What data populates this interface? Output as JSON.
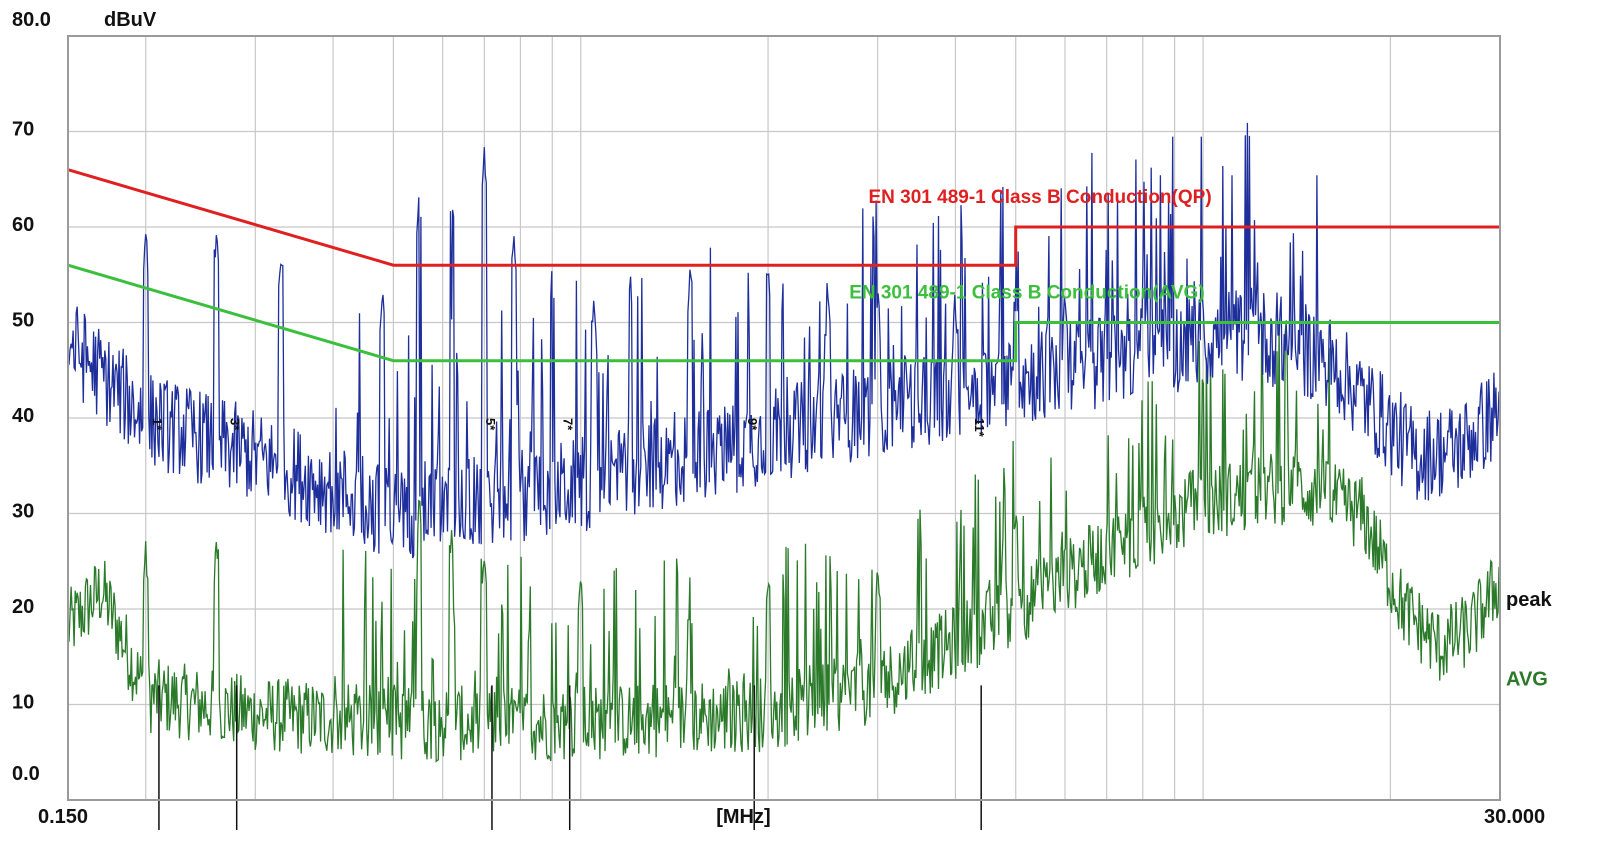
{
  "chart_data": {
    "type": "line",
    "ylabel": "dBuV",
    "xlabel": "[MHz]",
    "x_scale": "log",
    "xlim": [
      0.15,
      30.0
    ],
    "ylim": [
      0,
      80
    ],
    "x_tick_labels": [
      "0.150",
      "30.000"
    ],
    "y_tick_labels": [
      "80.0",
      "70",
      "60",
      "50",
      "40",
      "30",
      "20",
      "10",
      "0.0"
    ],
    "y_ticks": [
      80,
      70,
      60,
      50,
      40,
      30,
      20,
      10,
      0
    ],
    "grid": true,
    "series": [
      {
        "name": "EN 301 489-1 Class B Conduction(QP)",
        "color": "#e02020",
        "points": [
          [
            0.15,
            66
          ],
          [
            0.5,
            56
          ],
          [
            5.0,
            56
          ],
          [
            5.0,
            60
          ],
          [
            30.0,
            60
          ]
        ]
      },
      {
        "name": "EN 301 489-1 Class B Conduction(AVG)",
        "color": "#3cbf3c",
        "points": [
          [
            0.15,
            56
          ],
          [
            0.5,
            46
          ],
          [
            5.0,
            46
          ],
          [
            5.0,
            50
          ],
          [
            30.0,
            50
          ]
        ]
      },
      {
        "name": "peak",
        "color": "#1e2f9c",
        "envelope": [
          [
            0.15,
            48
          ],
          [
            0.2,
            40
          ],
          [
            0.3,
            36
          ],
          [
            0.5,
            30
          ],
          [
            1.0,
            33
          ],
          [
            2.0,
            38
          ],
          [
            3.0,
            41
          ],
          [
            5.0,
            44
          ],
          [
            8.0,
            47
          ],
          [
            12.0,
            49
          ],
          [
            16.0,
            46
          ],
          [
            20.0,
            39
          ],
          [
            22.0,
            36
          ],
          [
            26.0,
            37
          ],
          [
            30.0,
            41
          ]
        ],
        "spikes": [
          [
            0.2,
            61
          ],
          [
            0.26,
            62
          ],
          [
            0.33,
            59
          ],
          [
            0.48,
            55
          ],
          [
            0.55,
            64
          ],
          [
            0.62,
            65
          ],
          [
            0.7,
            69
          ],
          [
            0.78,
            60
          ],
          [
            0.9,
            58
          ],
          [
            1.05,
            55
          ],
          [
            1.2,
            57
          ],
          [
            1.5,
            58
          ],
          [
            2.0,
            57
          ],
          [
            2.5,
            55
          ],
          [
            3.0,
            55
          ],
          [
            4.0,
            54
          ],
          [
            5.0,
            55
          ],
          [
            6.0,
            55
          ],
          [
            8.0,
            54
          ],
          [
            10.0,
            52
          ],
          [
            12.0,
            54
          ],
          [
            14.0,
            51
          ]
        ]
      },
      {
        "name": "AVG",
        "color": "#2a7a2a",
        "envelope": [
          [
            0.15,
            18
          ],
          [
            0.17,
            22
          ],
          [
            0.2,
            11
          ],
          [
            0.3,
            9
          ],
          [
            0.5,
            8
          ],
          [
            1.0,
            8
          ],
          [
            2.0,
            9
          ],
          [
            3.0,
            12
          ],
          [
            5.0,
            20
          ],
          [
            7.0,
            26
          ],
          [
            10.0,
            31
          ],
          [
            14.0,
            33
          ],
          [
            18.0,
            30
          ],
          [
            21.0,
            20
          ],
          [
            24.0,
            16
          ],
          [
            27.0,
            18
          ],
          [
            30.0,
            23
          ]
        ],
        "spikes": [
          [
            0.2,
            28
          ],
          [
            0.26,
            29
          ],
          [
            0.55,
            33
          ],
          [
            0.62,
            30
          ],
          [
            0.7,
            28
          ],
          [
            1.0,
            25
          ],
          [
            1.5,
            24
          ],
          [
            2.0,
            25
          ],
          [
            3.0,
            26
          ],
          [
            5.0,
            31
          ],
          [
            8.0,
            35
          ],
          [
            12.0,
            36
          ],
          [
            14.0,
            34
          ]
        ]
      }
    ],
    "markers": [
      {
        "x": 0.21,
        "label": "1*"
      },
      {
        "x": 0.28,
        "label": "3*"
      },
      {
        "x": 0.72,
        "label": "5*"
      },
      {
        "x": 0.96,
        "label": "7*"
      },
      {
        "x": 1.9,
        "label": "9*"
      },
      {
        "x": 4.4,
        "label": "11*"
      }
    ],
    "annotations": [
      {
        "text": "EN 301 489-1 Class B Conduction(QP)",
        "color": "#e02020"
      },
      {
        "text": "EN 301 489-1 Class B Conduction(AVG)",
        "color": "#3cbf3c"
      },
      {
        "text": "peak",
        "color": "#111111"
      },
      {
        "text": "AVG",
        "color": "#2a7a2a"
      }
    ]
  }
}
